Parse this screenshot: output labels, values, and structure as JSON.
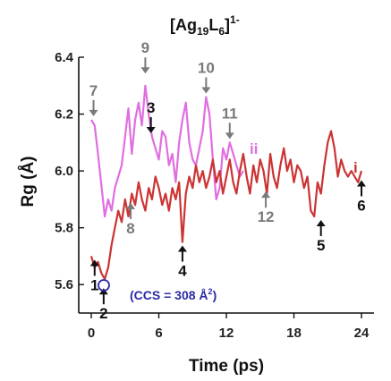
{
  "chart_data": {
    "type": "line",
    "title": "[Ag19L6]1-",
    "title_parts": {
      "base": "[Ag",
      "sub1": "19",
      "mid": "L",
      "sub2": "6",
      "end": "]",
      "sup": "1-"
    },
    "xlabel": "Time (ps)",
    "ylabel": "Rg (Å)",
    "xlim": [
      0,
      24
    ],
    "ylim": [
      5.5,
      6.4
    ],
    "xticks": [
      "0",
      "6",
      "12",
      "18",
      "24"
    ],
    "yticks": [
      "5.6",
      "5.8",
      "6.0",
      "6.2",
      "6.4"
    ],
    "grid": false,
    "colors": {
      "i": "#cc3333",
      "ii": "#e06ee0",
      "annotation_gray": "#7a7a7a",
      "annotation_black": "#111111",
      "ccs": "#2b2aa6"
    },
    "series": [
      {
        "name": "i",
        "x": [
          0.0,
          0.3,
          0.6,
          0.9,
          1.2,
          1.5,
          1.8,
          2.1,
          2.4,
          2.7,
          3.0,
          3.3,
          3.6,
          3.9,
          4.2,
          4.5,
          4.8,
          5.1,
          5.4,
          5.7,
          6.0,
          6.3,
          6.6,
          6.9,
          7.2,
          7.5,
          7.8,
          8.1,
          8.4,
          8.7,
          9.0,
          9.3,
          9.6,
          9.9,
          10.2,
          10.5,
          10.8,
          11.1,
          11.4,
          11.7,
          12.0,
          12.3,
          12.6,
          12.9,
          13.2,
          13.5,
          13.8,
          14.1,
          14.4,
          14.7,
          15.0,
          15.3,
          15.6,
          15.9,
          16.2,
          16.5,
          16.8,
          17.1,
          17.4,
          17.7,
          18.0,
          18.3,
          18.6,
          18.9,
          19.2,
          19.5,
          19.8,
          20.1,
          20.4,
          20.7,
          21.0,
          21.3,
          21.6,
          21.9,
          22.2,
          22.5,
          22.8,
          23.1,
          23.4,
          23.7,
          24.0
        ],
        "y": [
          5.7,
          5.66,
          5.68,
          5.64,
          5.62,
          5.66,
          5.74,
          5.8,
          5.86,
          5.82,
          5.9,
          5.84,
          5.92,
          5.88,
          5.96,
          5.9,
          5.86,
          5.94,
          5.9,
          5.98,
          5.94,
          5.88,
          5.92,
          5.86,
          5.94,
          5.9,
          5.96,
          5.75,
          5.92,
          5.98,
          5.94,
          6.02,
          5.96,
          6.0,
          5.94,
          5.98,
          6.04,
          5.96,
          6.0,
          5.92,
          5.98,
          6.04,
          5.96,
          5.92,
          6.0,
          6.06,
          5.98,
          5.92,
          6.02,
          5.96,
          6.04,
          6.0,
          5.92,
          6.06,
          5.98,
          5.94,
          6.02,
          6.08,
          6.0,
          6.04,
          5.96,
          6.02,
          6.0,
          5.94,
          5.98,
          5.86,
          5.84,
          5.96,
          5.92,
          6.02,
          6.1,
          6.14,
          6.08,
          5.98,
          6.04,
          6.0,
          5.98,
          6.0,
          5.98,
          5.96,
          6.0
        ]
      },
      {
        "name": "ii",
        "x": [
          0.0,
          0.3,
          0.6,
          0.9,
          1.2,
          1.5,
          1.8,
          2.1,
          2.4,
          2.7,
          3.0,
          3.3,
          3.6,
          3.9,
          4.2,
          4.5,
          4.8,
          5.1,
          5.4,
          5.7,
          6.0,
          6.3,
          6.6,
          6.9,
          7.2,
          7.5,
          7.8,
          8.1,
          8.4,
          8.7,
          9.0,
          9.3,
          9.6,
          9.9,
          10.2,
          10.5,
          10.8,
          11.1,
          11.4,
          11.7,
          12.0,
          12.3,
          12.6,
          12.9,
          13.2,
          13.5
        ],
        "y": [
          6.18,
          6.16,
          6.06,
          5.95,
          5.84,
          5.9,
          5.86,
          5.94,
          5.98,
          6.02,
          6.12,
          6.22,
          6.06,
          6.18,
          6.24,
          6.16,
          6.3,
          6.2,
          6.12,
          6.08,
          6.04,
          6.14,
          6.12,
          6.02,
          6.06,
          5.96,
          6.1,
          6.18,
          6.24,
          6.1,
          6.04,
          6.02,
          6.08,
          6.14,
          6.26,
          6.2,
          6.04,
          5.9,
          5.94,
          6.08,
          6.04,
          6.1,
          6.06,
          6.02,
          5.98,
          6.0
        ]
      }
    ],
    "annotations": [
      {
        "label": "1",
        "x": 0.3,
        "y": 5.7,
        "color": "black",
        "arrow": "up"
      },
      {
        "label": "2",
        "x": 1.1,
        "y": 5.6,
        "color": "black",
        "arrow": "up"
      },
      {
        "label": "3",
        "x": 5.3,
        "y": 6.12,
        "color": "black",
        "arrow": "down"
      },
      {
        "label": "4",
        "x": 8.1,
        "y": 5.75,
        "color": "black",
        "arrow": "up"
      },
      {
        "label": "5",
        "x": 20.4,
        "y": 5.84,
        "color": "black",
        "arrow": "up"
      },
      {
        "label": "6",
        "x": 24.0,
        "y": 5.98,
        "color": "black",
        "arrow": "up"
      },
      {
        "label": "7",
        "x": 0.2,
        "y": 6.18,
        "color": "gray",
        "arrow": "down"
      },
      {
        "label": "8",
        "x": 3.5,
        "y": 5.9,
        "color": "gray",
        "arrow": "up"
      },
      {
        "label": "9",
        "x": 4.8,
        "y": 6.33,
        "color": "gray",
        "arrow": "down"
      },
      {
        "label": "10",
        "x": 10.2,
        "y": 6.26,
        "color": "gray",
        "arrow": "down"
      },
      {
        "label": "11",
        "x": 12.3,
        "y": 6.1,
        "color": "gray",
        "arrow": "down"
      },
      {
        "label": "12",
        "x": 15.5,
        "y": 5.94,
        "color": "gray",
        "arrow": "up"
      }
    ],
    "series_labels": [
      {
        "text": "i",
        "color": "#cc3333"
      },
      {
        "text": "ii",
        "color": "#e06ee0"
      }
    ],
    "ccs_label": "(CCS = 308 Å",
    "ccs_sup": "2",
    "ccs_close": ")"
  }
}
